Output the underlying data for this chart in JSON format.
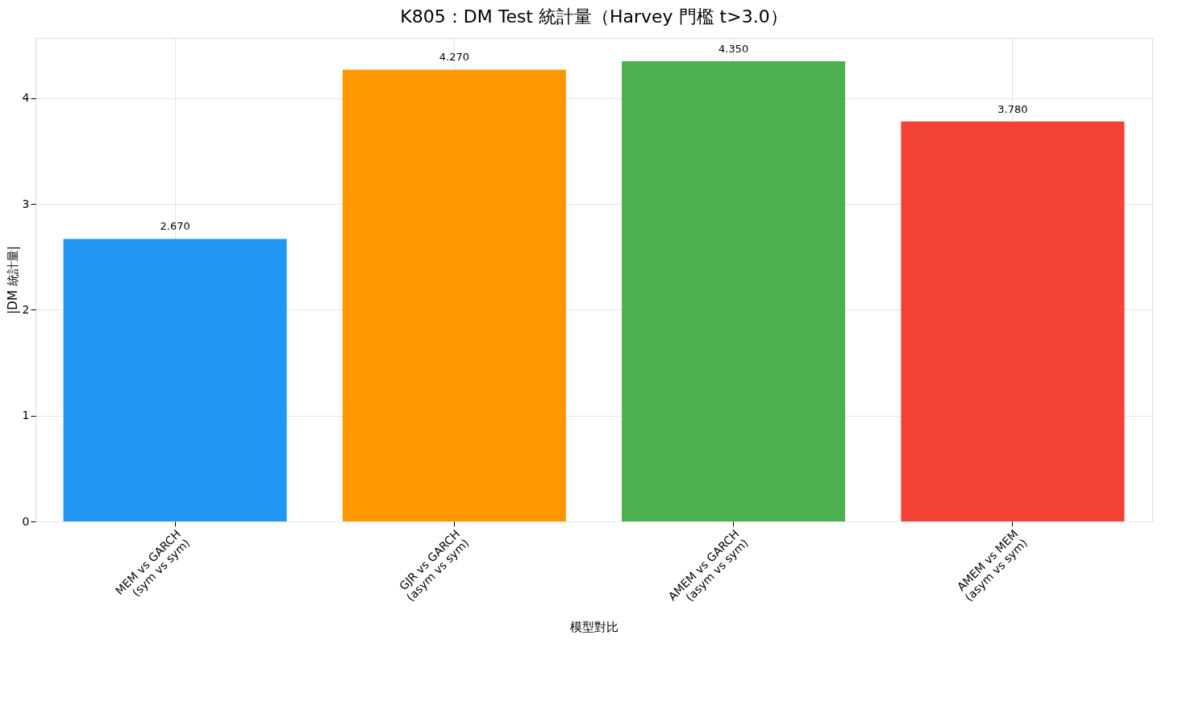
{
  "chart_data": {
    "type": "bar",
    "title": "K805：DM Test 統計量（Harvey 門檻 t>3.0）",
    "xlabel": "模型對比",
    "ylabel": "|DM 統計量|",
    "categories": [
      "MEM vs GARCH\n(sym vs sym)",
      "GJR vs GARCH\n(asym vs sym)",
      "AMEM vs GARCH\n(asym vs sym)",
      "AMEM vs MEM\n(asym vs sym)"
    ],
    "values": [
      2.67,
      4.27,
      4.35,
      3.78
    ],
    "colors": [
      "#2196f3",
      "#ff9800",
      "#4caf50",
      "#f44336"
    ],
    "value_labels": [
      "2.670",
      "4.270",
      "4.350",
      "3.780"
    ],
    "ylim": [
      0,
      4.57
    ],
    "yticks": [
      0,
      1,
      2,
      3,
      4
    ],
    "grid": true
  }
}
